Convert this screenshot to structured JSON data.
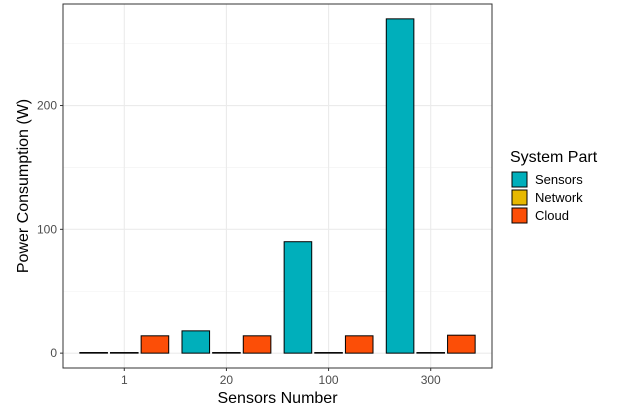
{
  "chart_data": {
    "type": "bar",
    "title": "",
    "xlabel": "Sensors Number",
    "ylabel": "Power Consumption (W)",
    "categories": [
      "1",
      "20",
      "100",
      "300"
    ],
    "ylim": [
      -12,
      282
    ],
    "yticks": [
      0,
      100,
      200
    ],
    "grid": true,
    "legend": {
      "title": "System Part",
      "position": "right"
    },
    "series": [
      {
        "name": "Sensors",
        "color": "#00AFBB",
        "values": [
          0.5,
          18,
          90,
          270
        ]
      },
      {
        "name": "Network",
        "color": "#E7B800",
        "values": [
          0.1,
          0.1,
          0.1,
          0.1
        ]
      },
      {
        "name": "Cloud",
        "color": "#FC4E07",
        "values": [
          14,
          14,
          14,
          14.5
        ]
      }
    ]
  }
}
